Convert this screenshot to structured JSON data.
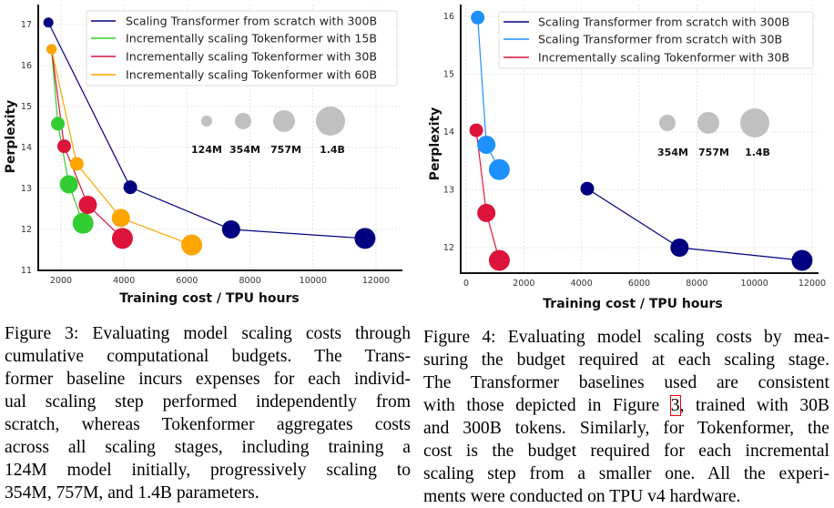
{
  "chart_data": [
    {
      "type": "scatter",
      "xlabel": "Training cost / TPU hours",
      "ylabel": "Perplexity",
      "xticks": [
        2000,
        4000,
        6000,
        8000,
        10000,
        12000
      ],
      "yticks": [
        11,
        12,
        13,
        14,
        15,
        16,
        17
      ],
      "xlim": [
        1280,
        12840
      ],
      "ylim": [
        11,
        17.5
      ],
      "grid": true,
      "legend_placement": "top-right",
      "marker_size_by": "model size",
      "size_legend": [
        "124M",
        "354M",
        "757M",
        "1.4B"
      ],
      "series": [
        {
          "name": "Scaling Transformer from scratch with 300B",
          "color": "#000080",
          "x": [
            1600,
            4200,
            7400,
            11650
          ],
          "y": [
            17.05,
            13.03,
            12.0,
            11.78
          ],
          "sizes": [
            "124M",
            "354M",
            "757M",
            "1.4B"
          ]
        },
        {
          "name": "Incrementally scaling Tokenformer with 15B",
          "color": "#32cd32",
          "x": [
            1700,
            1900,
            2250,
            2700
          ],
          "y": [
            16.4,
            14.58,
            13.1,
            12.15
          ],
          "sizes": [
            "124M",
            "354M",
            "757M",
            "1.4B"
          ]
        },
        {
          "name": "Incrementally scaling Tokenformer with 30B",
          "color": "#dc143c",
          "x": [
            1700,
            2100,
            2850,
            3950
          ],
          "y": [
            16.4,
            14.03,
            12.6,
            11.78
          ],
          "sizes": [
            "124M",
            "354M",
            "757M",
            "1.4B"
          ]
        },
        {
          "name": "Incrementally scaling Tokenformer with 60B",
          "color": "#ffa500",
          "x": [
            1700,
            2500,
            3900,
            6150
          ],
          "y": [
            16.4,
            13.6,
            12.28,
            11.62
          ],
          "sizes": [
            "124M",
            "354M",
            "757M",
            "1.4B"
          ]
        }
      ]
    },
    {
      "type": "scatter",
      "xlabel": "Training cost / TPU hours",
      "ylabel": "Perplexity",
      "xticks": [
        0,
        2000,
        4000,
        6000,
        8000,
        10000,
        12000
      ],
      "yticks": [
        12,
        13,
        14,
        15,
        16
      ],
      "xlim": [
        -200,
        12200
      ],
      "ylim": [
        11.55,
        16.2
      ],
      "grid": true,
      "legend_placement": "top-right",
      "marker_size_by": "model size",
      "size_legend": [
        "354M",
        "757M",
        "1.4B"
      ],
      "series": [
        {
          "name": "Scaling Transformer from scratch with 300B",
          "color": "#000080",
          "x": [
            4200,
            7400,
            11650
          ],
          "y": [
            13.02,
            12.0,
            11.78
          ],
          "sizes": [
            "354M",
            "757M",
            "1.4B"
          ]
        },
        {
          "name": "Scaling Transformer from scratch with 30B",
          "color": "#1e90ff",
          "x": [
            400,
            700,
            1150
          ],
          "y": [
            15.98,
            13.78,
            13.35
          ],
          "sizes": [
            "354M",
            "757M",
            "1.4B"
          ]
        },
        {
          "name": "Incrementally scaling Tokenformer with 30B",
          "color": "#dc143c",
          "x": [
            350,
            700,
            1150
          ],
          "y": [
            14.03,
            12.6,
            11.78
          ],
          "sizes": [
            "354M",
            "757M",
            "1.4B"
          ]
        }
      ]
    }
  ],
  "captions": {
    "figure3": [
      [
        "Figure 3: Evaluating model scaling costs through"
      ],
      [
        "cumulative computational budgets.  The Trans-"
      ],
      [
        "former baseline incurs expenses for each individ-"
      ],
      [
        "ual scaling step performed independently from"
      ],
      [
        "scratch, whereas Tokenformer aggregates costs"
      ],
      [
        "across all scaling stages, including training a"
      ],
      [
        "124M model initially, progressively scaling to"
      ],
      [
        "354M, 757M, and 1.4B parameters."
      ]
    ],
    "figure4": [
      [
        "Figure 4: Evaluating model scaling costs by mea-"
      ],
      [
        "suring the budget required at each scaling stage."
      ],
      [
        "The Transformer baselines used are consistent"
      ],
      [
        "with those depicted in Figure ",
        "3",
        ", trained with 30B"
      ],
      [
        "and 300B tokens. Similarly, for Tokenformer, the"
      ],
      [
        "cost is the budget required for each incremental"
      ],
      [
        "scaling step from a smaller one.  All the experi-"
      ],
      [
        "ments were conducted on TPU v4 hardware."
      ]
    ]
  }
}
